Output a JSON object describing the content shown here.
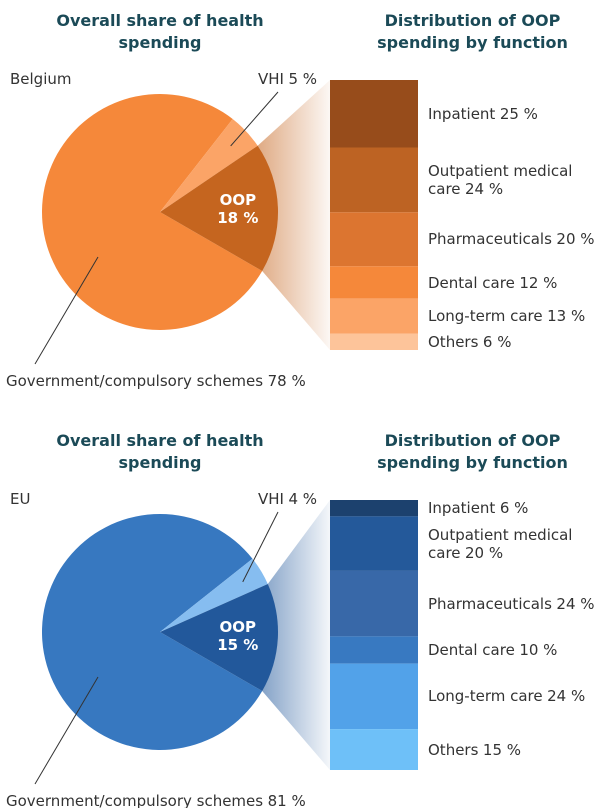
{
  "chart_data": [
    {
      "type": "pie",
      "title": "Overall share of health spending",
      "country": "Belgium",
      "categories": [
        "Government/compulsory schemes",
        "VHI",
        "OOP"
      ],
      "values": [
        78,
        5,
        18
      ],
      "value_labels": [
        "78 %",
        "5 %",
        "18 %"
      ],
      "colors": [
        "#f5883a",
        "#fba467",
        "#c5651f"
      ]
    },
    {
      "type": "stacked_bar",
      "title": "Distribution of OOP spending by function",
      "categories": [
        "Inpatient",
        "Outpatient medical care",
        "Pharmaceuticals",
        "Dental care",
        "Long-term care",
        "Others"
      ],
      "values": [
        25,
        24,
        20,
        12,
        13,
        6
      ],
      "value_labels": [
        "25 %",
        "24 %",
        "20 %",
        "12 %",
        "13 %",
        "6 %"
      ],
      "colors": [
        "#974c1b",
        "#bd6323",
        "#dc7530",
        "#f5883a",
        "#fba467",
        "#fdc49a"
      ]
    },
    {
      "type": "pie",
      "title": "Overall share of health spending",
      "country": "EU",
      "categories": [
        "Government/compulsory schemes",
        "VHI",
        "OOP"
      ],
      "values": [
        81,
        4,
        15
      ],
      "value_labels": [
        "81 %",
        "4 %",
        "15 %"
      ],
      "colors": [
        "#3778c0",
        "#86bdf0",
        "#22589b"
      ]
    },
    {
      "type": "stacked_bar",
      "title": "Distribution of OOP spending by function",
      "categories": [
        "Inpatient",
        "Outpatient medical care",
        "Pharmaceuticals",
        "Dental care",
        "Long-term care",
        "Others"
      ],
      "values": [
        6,
        20,
        24,
        10,
        24,
        15
      ],
      "value_labels": [
        "6 %",
        "20 %",
        "24 %",
        "10 %",
        "24 %",
        "15 %"
      ],
      "colors": [
        "#1c416e",
        "#24599a",
        "#3868a8",
        "#3879c1",
        "#52a2e9",
        "#6ec0f8"
      ]
    }
  ]
}
